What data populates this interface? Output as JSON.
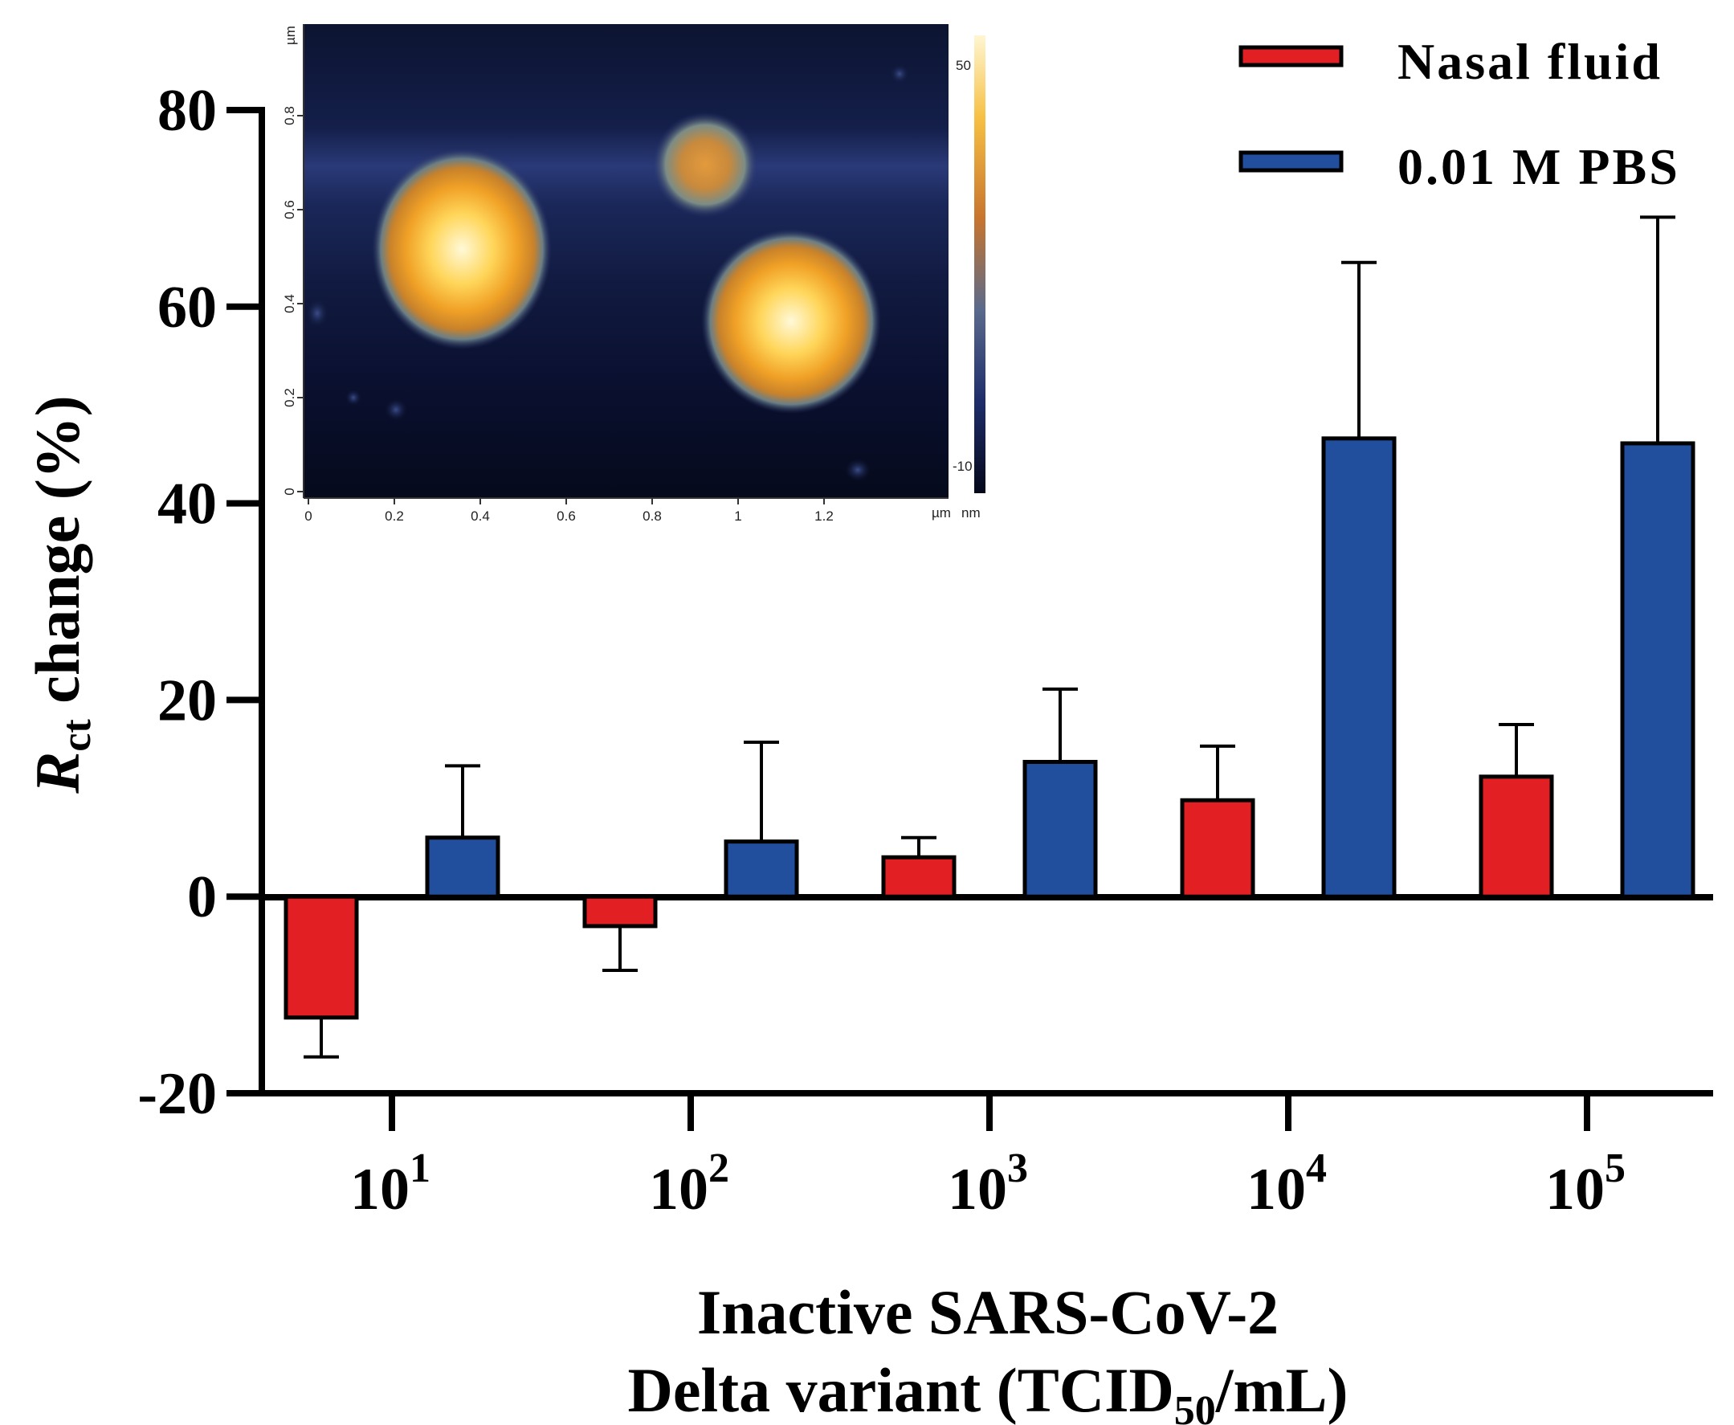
{
  "chart_data": {
    "type": "bar",
    "ylabel_main": "R",
    "ylabel_sub": "ct",
    "ylabel_rest": " change (%)",
    "xlabel_line1": "Inactive SARS-CoV-2",
    "xlabel_line2_pre": "Delta variant (TCID",
    "xlabel_line2_sub": "50",
    "xlabel_line2_post": "/mL)",
    "ylim": [
      -20,
      80
    ],
    "yticks": [
      -20,
      0,
      20,
      40,
      60,
      80
    ],
    "categories": [
      {
        "base": "10",
        "exp": "1"
      },
      {
        "base": "10",
        "exp": "2"
      },
      {
        "base": "10",
        "exp": "3"
      },
      {
        "base": "10",
        "exp": "4"
      },
      {
        "base": "10",
        "exp": "5"
      }
    ],
    "series": [
      {
        "name": "Nasal fluid",
        "color": "#e22024",
        "values": [
          -12.3,
          -3.0,
          4.0,
          9.8,
          12.2
        ],
        "errors": [
          4.0,
          4.5,
          2.0,
          5.5,
          5.3
        ]
      },
      {
        "name": "0.01 M PBS",
        "color": "#214f9e",
        "values": [
          6.0,
          5.6,
          13.7,
          46.6,
          46.1
        ],
        "errors": [
          7.3,
          10.1,
          7.4,
          17.9,
          23.0
        ]
      }
    ],
    "legend_position": "top-right"
  },
  "inset": {
    "description_type": "AFM height image",
    "x_ticks": [
      "0",
      "0.2",
      "0.4",
      "0.6",
      "0.8",
      "1",
      "1.2"
    ],
    "x_unit": "µm",
    "y_ticks": [
      "0",
      "0.2",
      "0.4",
      "0.6",
      "0.8"
    ],
    "y_unit": "µm",
    "colorbar_max": "50",
    "colorbar_min": "-10",
    "colorbar_unit": "nm"
  }
}
